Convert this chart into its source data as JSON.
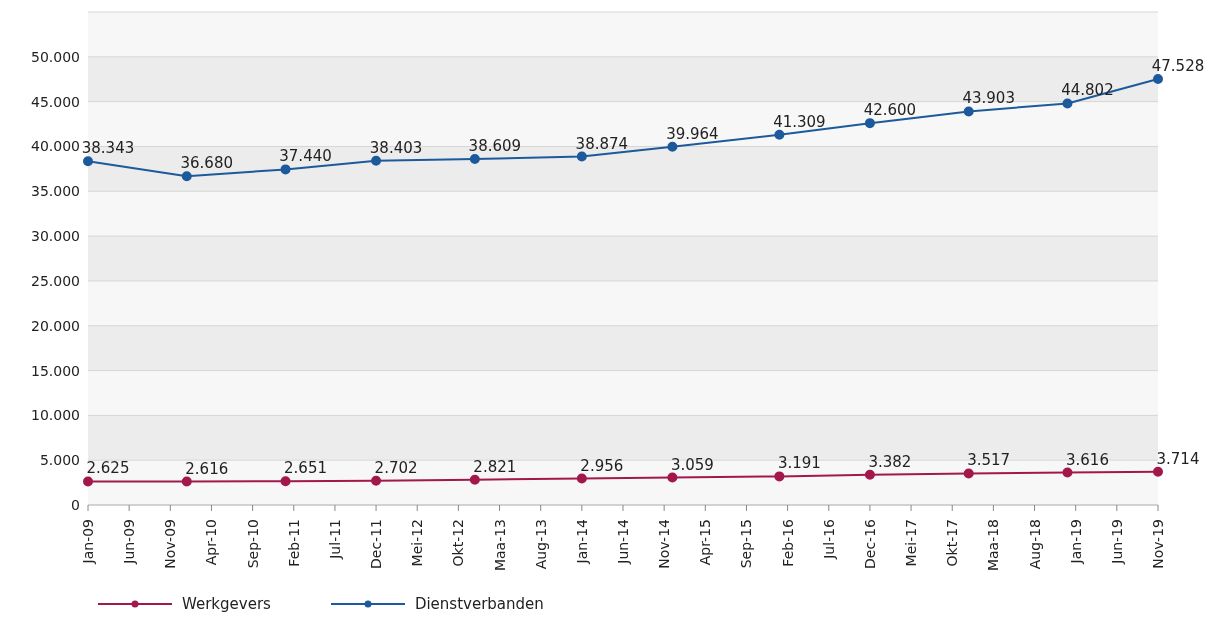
{
  "chart_data": {
    "type": "line",
    "x": [
      "2009-01",
      "2010-01",
      "2011-01",
      "2011-12",
      "2012-12",
      "2014-01",
      "2014-12",
      "2016-01",
      "2016-12",
      "2017-12",
      "2018-12",
      "2019-11"
    ],
    "series": [
      {
        "name": "Werkgevers",
        "color": "#a3184b",
        "values": [
          2625,
          2616,
          2651,
          2702,
          2821,
          2956,
          3059,
          3191,
          3382,
          3517,
          3616,
          3714
        ],
        "value_labels": [
          "2.625",
          "2.616",
          "2.651",
          "2.702",
          "2.821",
          "2.956",
          "3.059",
          "3.191",
          "3.382",
          "3.517",
          "3.616",
          "3.714"
        ]
      },
      {
        "name": "Dienstverbanden",
        "color": "#1c5a9c",
        "values": [
          38343,
          36680,
          37440,
          38403,
          38609,
          38874,
          39964,
          41309,
          42600,
          43903,
          44802,
          47528
        ],
        "value_labels": [
          "38.343",
          "36.680",
          "37.440",
          "38.403",
          "38.609",
          "38.874",
          "39.964",
          "41.309",
          "42.600",
          "43.903",
          "44.802",
          "47.528"
        ]
      }
    ],
    "xlim": [
      "2009-01",
      "2019-11"
    ],
    "xticks": [
      {
        "value": "2009-01",
        "label": "Jan-09"
      },
      {
        "value": "2009-06",
        "label": "Jun-09"
      },
      {
        "value": "2009-11",
        "label": "Nov-09"
      },
      {
        "value": "2010-04",
        "label": "Apr-10"
      },
      {
        "value": "2010-09",
        "label": "Sep-10"
      },
      {
        "value": "2011-02",
        "label": "Feb-11"
      },
      {
        "value": "2011-07",
        "label": "Jul-11"
      },
      {
        "value": "2011-12",
        "label": "Dec-11"
      },
      {
        "value": "2012-05",
        "label": "Mei-12"
      },
      {
        "value": "2012-10",
        "label": "Okt-12"
      },
      {
        "value": "2013-03",
        "label": "Maa-13"
      },
      {
        "value": "2013-08",
        "label": "Aug-13"
      },
      {
        "value": "2014-01",
        "label": "Jan-14"
      },
      {
        "value": "2014-06",
        "label": "Jun-14"
      },
      {
        "value": "2014-11",
        "label": "Nov-14"
      },
      {
        "value": "2015-04",
        "label": "Apr-15"
      },
      {
        "value": "2015-09",
        "label": "Sep-15"
      },
      {
        "value": "2016-02",
        "label": "Feb-16"
      },
      {
        "value": "2016-07",
        "label": "Jul-16"
      },
      {
        "value": "2016-12",
        "label": "Dec-16"
      },
      {
        "value": "2017-05",
        "label": "Mei-17"
      },
      {
        "value": "2017-10",
        "label": "Okt-17"
      },
      {
        "value": "2018-03",
        "label": "Maa-18"
      },
      {
        "value": "2018-08",
        "label": "Aug-18"
      },
      {
        "value": "2019-01",
        "label": "Jan-19"
      },
      {
        "value": "2019-06",
        "label": "Jun-19"
      },
      {
        "value": "2019-11",
        "label": "Nov-19"
      }
    ],
    "ylim": [
      0,
      55000
    ],
    "yticks": [
      {
        "value": 0,
        "label": "0"
      },
      {
        "value": 5000,
        "label": "5.000"
      },
      {
        "value": 10000,
        "label": "10.000"
      },
      {
        "value": 15000,
        "label": "15.000"
      },
      {
        "value": 20000,
        "label": "20.000"
      },
      {
        "value": 25000,
        "label": "25.000"
      },
      {
        "value": 30000,
        "label": "30.000"
      },
      {
        "value": 35000,
        "label": "35.000"
      },
      {
        "value": 40000,
        "label": "40.000"
      },
      {
        "value": 45000,
        "label": "45.000"
      },
      {
        "value": 50000,
        "label": "50.000"
      }
    ],
    "grid": "y",
    "legend": "bottom left",
    "marker": "circle",
    "line_style": "solid"
  }
}
